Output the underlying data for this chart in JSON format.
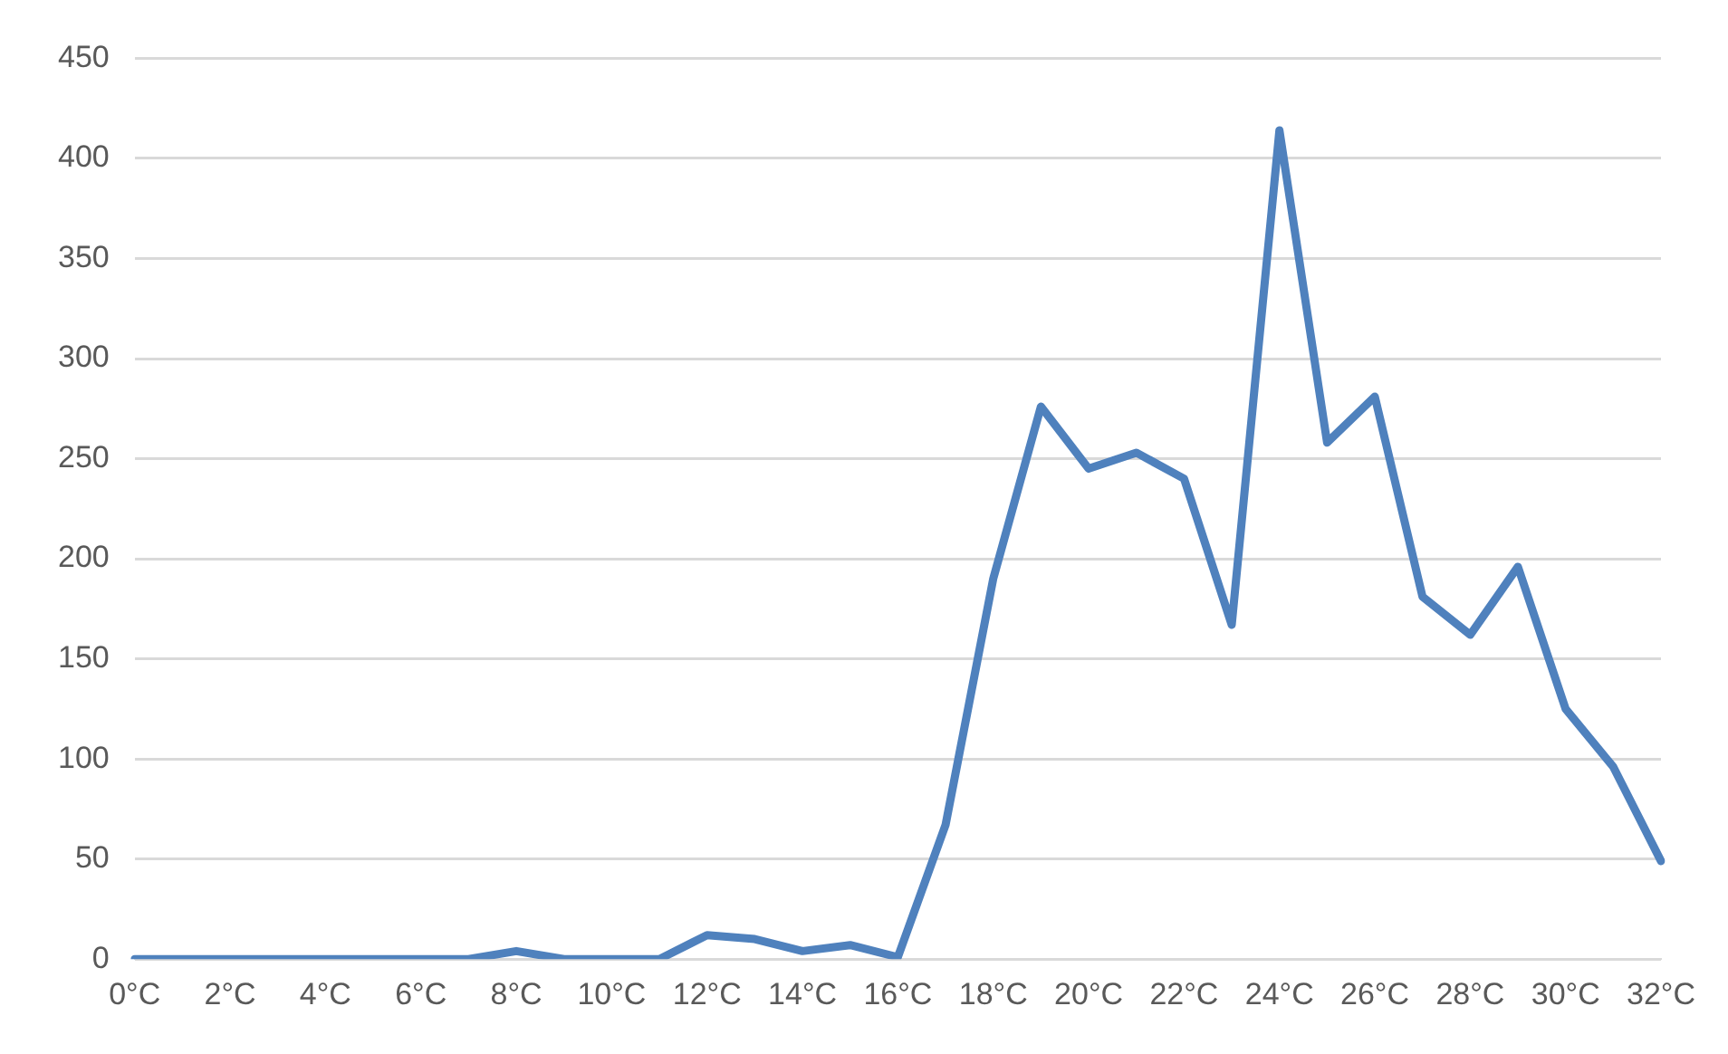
{
  "chart_data": {
    "type": "line",
    "categories": [
      "0°C",
      null,
      "2°C",
      null,
      "4°C",
      null,
      "6°C",
      null,
      "8°C",
      null,
      "10°C",
      null,
      "12°C",
      null,
      "14°C",
      null,
      "16°C",
      null,
      "18°C",
      null,
      "20°C",
      null,
      "22°C",
      null,
      "24°C",
      null,
      "26°C",
      null,
      "28°C",
      null,
      "30°C",
      null,
      "32°C"
    ],
    "series": [
      {
        "color": "#4f81bd",
        "values": [
          0,
          0,
          0,
          0,
          0,
          0,
          0,
          0,
          4,
          0,
          0,
          0,
          12,
          10,
          4,
          7,
          1,
          67,
          190,
          276,
          245,
          253,
          240,
          167,
          414,
          258,
          281,
          181,
          162,
          196,
          125,
          96,
          49
        ]
      }
    ],
    "ylim": [
      0,
      450
    ],
    "yticks": [
      0,
      50,
      100,
      150,
      200,
      250,
      300,
      350,
      400,
      450
    ],
    "grid": "y",
    "legend": false,
    "marker": "none",
    "line_style": "solid"
  }
}
